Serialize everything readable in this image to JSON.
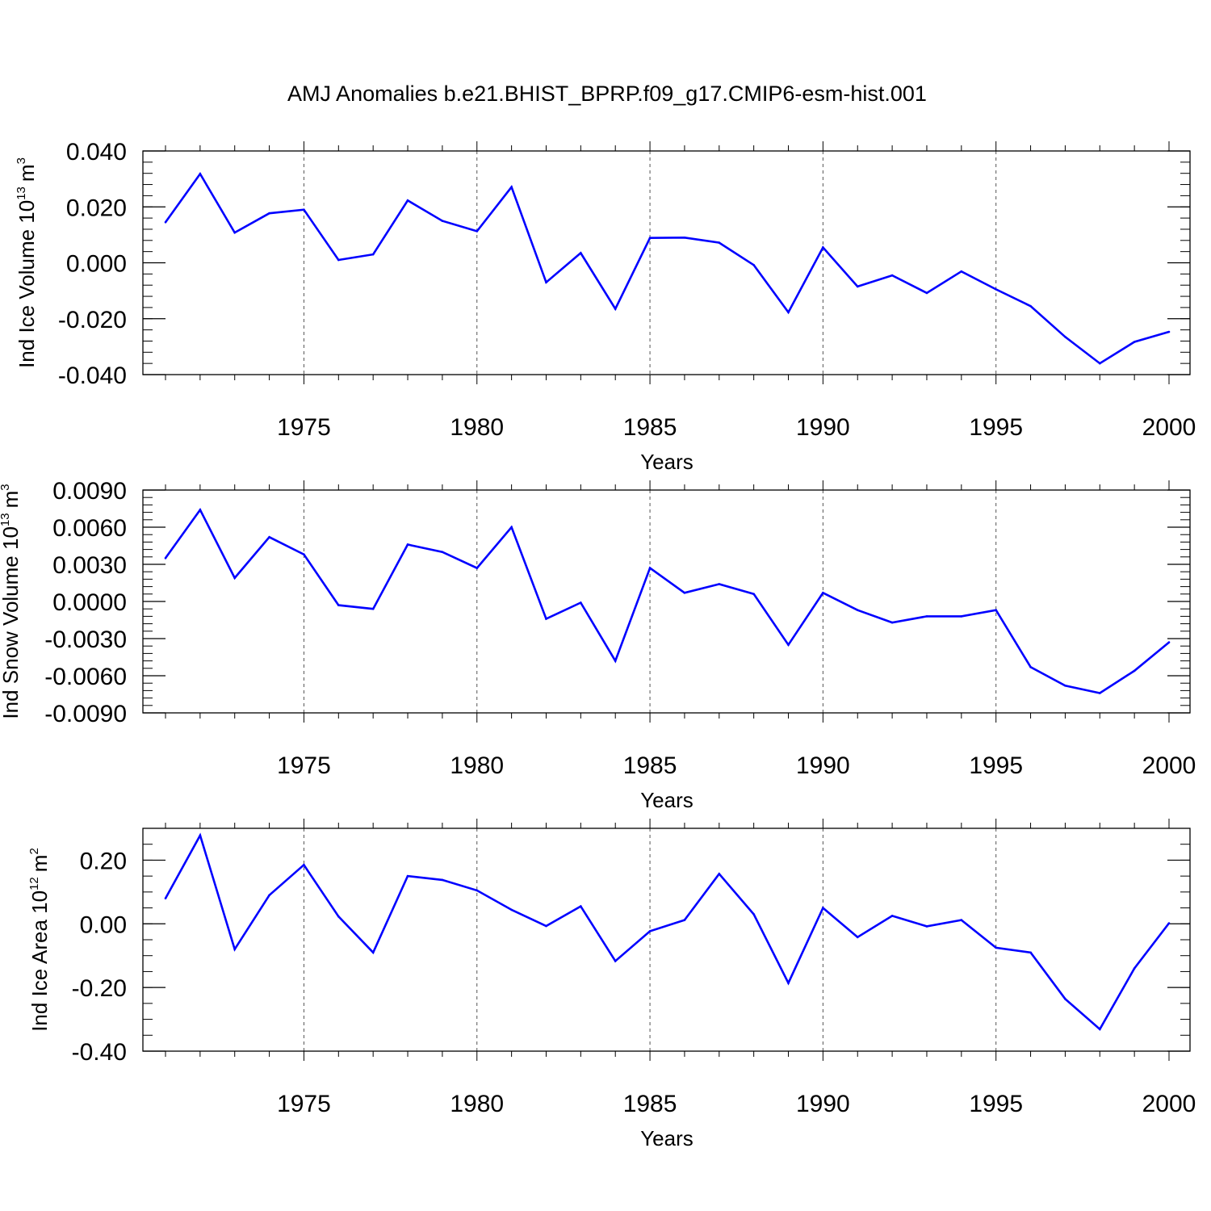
{
  "title": "AMJ Anomalies b.e21.BHIST_BPRP.f09_g17.CMIP6-esm-hist.001",
  "line_color": "#0000ff",
  "chart_data": [
    {
      "type": "line",
      "ylabel": "Ind Ice Volume 10",
      "ylabel_exp": "13",
      "ylabel_unit": "m",
      "ylabel_unit_exp": "3",
      "xlabel": "Years",
      "xlim": [
        1971,
        2000
      ],
      "ylim": [
        -0.04,
        0.04
      ],
      "ytick_values": [
        -0.04,
        -0.02,
        0.0,
        0.02,
        0.04
      ],
      "ytick_labels": [
        "-0.040",
        "-0.020",
        "0.000",
        "0.020",
        "0.040"
      ],
      "yminor_step": 0.004,
      "xtick_values": [
        1975,
        1980,
        1985,
        1990,
        1995,
        2000
      ],
      "xtick_labels": [
        "1975",
        "1980",
        "1985",
        "1990",
        "1995",
        "2000"
      ],
      "grid_x": [
        1975,
        1980,
        1985,
        1990,
        1995
      ],
      "x": [
        1971,
        1972,
        1973,
        1974,
        1975,
        1976,
        1977,
        1978,
        1979,
        1980,
        1981,
        1982,
        1983,
        1984,
        1985,
        1986,
        1987,
        1988,
        1989,
        1990,
        1991,
        1992,
        1993,
        1994,
        1995,
        1996,
        1997,
        1998,
        1999,
        2000
      ],
      "values": [
        0.0145,
        0.0318,
        0.0108,
        0.0177,
        0.019,
        0.001,
        0.003,
        0.0223,
        0.015,
        0.0113,
        0.0271,
        -0.007,
        0.0035,
        -0.0165,
        0.0089,
        0.009,
        0.0072,
        -0.0008,
        -0.0177,
        0.0055,
        -0.0085,
        -0.0045,
        -0.0108,
        -0.0031,
        -0.0095,
        -0.0155,
        -0.0265,
        -0.036,
        -0.0283,
        -0.0247
      ]
    },
    {
      "type": "line",
      "ylabel": "Ind Snow Volume 10",
      "ylabel_exp": "13",
      "ylabel_unit": "m",
      "ylabel_unit_exp": "3",
      "xlabel": "Years",
      "xlim": [
        1971,
        2000
      ],
      "ylim": [
        -0.009,
        0.009
      ],
      "ytick_values": [
        -0.009,
        -0.006,
        -0.003,
        0.0,
        0.003,
        0.006,
        0.009
      ],
      "ytick_labels": [
        "-0.0090",
        "-0.0060",
        "-0.0030",
        "0.0000",
        "0.0030",
        "0.0060",
        "0.0090"
      ],
      "yminor_step": 0.0006,
      "xtick_values": [
        1975,
        1980,
        1985,
        1990,
        1995,
        2000
      ],
      "xtick_labels": [
        "1975",
        "1980",
        "1985",
        "1990",
        "1995",
        "2000"
      ],
      "grid_x": [
        1975,
        1980,
        1985,
        1990,
        1995
      ],
      "x": [
        1971,
        1972,
        1973,
        1974,
        1975,
        1976,
        1977,
        1978,
        1979,
        1980,
        1981,
        1982,
        1983,
        1984,
        1985,
        1986,
        1987,
        1988,
        1989,
        1990,
        1991,
        1992,
        1993,
        1994,
        1995,
        1996,
        1997,
        1998,
        1999,
        2000
      ],
      "values": [
        0.0035,
        0.0074,
        0.0019,
        0.0052,
        0.0038,
        -0.0003,
        -0.0006,
        0.0046,
        0.004,
        0.0027,
        0.006,
        -0.0014,
        -0.0001,
        -0.0048,
        0.0027,
        0.0007,
        0.0014,
        0.0006,
        -0.0035,
        0.0007,
        -0.0007,
        -0.0017,
        -0.0012,
        -0.0012,
        -0.0007,
        -0.0053,
        -0.0068,
        -0.0074,
        -0.0056,
        -0.0033
      ]
    },
    {
      "type": "line",
      "ylabel": "Ind Ice Area 10",
      "ylabel_exp": "12",
      "ylabel_unit": "m",
      "ylabel_unit_exp": "2",
      "xlabel": "Years",
      "xlim": [
        1971,
        2000
      ],
      "ylim": [
        -0.4,
        0.3
      ],
      "ytick_values": [
        -0.4,
        -0.2,
        0.0,
        0.2
      ],
      "ytick_labels": [
        "-0.40",
        "-0.20",
        "0.00",
        "0.20"
      ],
      "yminor_step": 0.05,
      "xtick_values": [
        1975,
        1980,
        1985,
        1990,
        1995,
        2000
      ],
      "xtick_labels": [
        "1975",
        "1980",
        "1985",
        "1990",
        "1995",
        "2000"
      ],
      "grid_x": [
        1975,
        1980,
        1985,
        1990,
        1995
      ],
      "x": [
        1971,
        1972,
        1973,
        1974,
        1975,
        1976,
        1977,
        1978,
        1979,
        1980,
        1981,
        1982,
        1983,
        1984,
        1985,
        1986,
        1987,
        1988,
        1989,
        1990,
        1991,
        1992,
        1993,
        1994,
        1995,
        1996,
        1997,
        1998,
        1999,
        2000
      ],
      "values": [
        0.08,
        0.278,
        -0.08,
        0.09,
        0.185,
        0.023,
        -0.09,
        0.15,
        0.138,
        0.105,
        0.044,
        -0.007,
        0.055,
        -0.117,
        -0.023,
        0.012,
        0.157,
        0.03,
        -0.186,
        0.05,
        -0.042,
        0.025,
        -0.008,
        0.012,
        -0.075,
        -0.09,
        -0.236,
        -0.331,
        -0.14,
        0.002
      ]
    }
  ]
}
